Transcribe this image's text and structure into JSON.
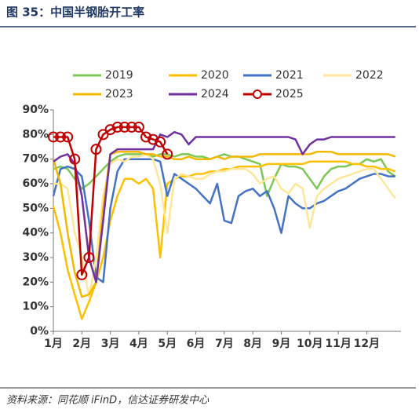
{
  "chart_data": {
    "type": "line",
    "title": "图 35：中国半钢胎开工率",
    "source": "资料来源：同花顺 iFinD，信达证券研发中心",
    "x": [
      1,
      1.25,
      1.5,
      1.75,
      2,
      2.25,
      2.5,
      2.75,
      3,
      3.25,
      3.5,
      3.75,
      4,
      4.25,
      4.5,
      4.75,
      5,
      5.25,
      5.5,
      5.75,
      6,
      6.25,
      6.5,
      6.75,
      7,
      7.25,
      7.5,
      7.75,
      8,
      8.25,
      8.5,
      8.75,
      9,
      9.25,
      9.5,
      9.75,
      10,
      10.25,
      10.5,
      10.75,
      11,
      11.25,
      11.5,
      11.75,
      12,
      12.25,
      12.5,
      12.75,
      13
    ],
    "xlim": [
      1,
      13.2
    ],
    "xticks": [
      {
        "value": 1,
        "label": "1月"
      },
      {
        "value": 2,
        "label": "2月"
      },
      {
        "value": 3,
        "label": "3月"
      },
      {
        "value": 4,
        "label": "4月"
      },
      {
        "value": 5,
        "label": "5月"
      },
      {
        "value": 6,
        "label": "6月"
      },
      {
        "value": 7,
        "label": "7月"
      },
      {
        "value": 8,
        "label": "8月"
      },
      {
        "value": 9,
        "label": "9月"
      },
      {
        "value": 10,
        "label": "10月"
      },
      {
        "value": 11,
        "label": "11月"
      },
      {
        "value": 12,
        "label": "12月"
      }
    ],
    "ylim": [
      0,
      90
    ],
    "yticks": [
      {
        "value": 0,
        "label": "0%"
      },
      {
        "value": 10,
        "label": "10%"
      },
      {
        "value": 20,
        "label": "20%"
      },
      {
        "value": 30,
        "label": "30%"
      },
      {
        "value": 40,
        "label": "40%"
      },
      {
        "value": 50,
        "label": "50%"
      },
      {
        "value": 60,
        "label": "60%"
      },
      {
        "value": 70,
        "label": "70%"
      },
      {
        "value": 80,
        "label": "80%"
      },
      {
        "value": 90,
        "label": "90%"
      }
    ],
    "series": [
      {
        "name": "2019",
        "color": "#7dc855",
        "values": [
          66,
          67,
          66,
          62,
          58,
          60,
          63,
          66,
          69,
          71,
          72,
          72,
          72,
          72,
          71,
          72,
          72,
          71,
          72,
          72,
          71,
          71,
          70,
          71,
          72,
          71,
          71,
          70,
          69,
          68,
          55,
          62,
          68,
          67,
          67,
          66,
          62,
          58,
          63,
          66,
          67,
          67,
          68,
          68,
          70,
          69,
          70,
          65,
          63
        ]
      },
      {
        "name": "2020",
        "color": "#ffc000",
        "values": [
          51,
          40,
          25,
          15,
          5,
          12,
          20,
          30,
          45,
          55,
          62,
          62,
          60,
          62,
          58,
          30,
          60,
          62,
          63,
          63,
          64,
          64,
          65,
          65,
          66,
          66,
          67,
          67,
          67,
          67,
          68,
          68,
          68,
          68,
          68,
          68,
          69,
          69,
          69,
          69,
          69,
          69,
          68,
          68,
          67,
          67,
          66,
          66,
          65
        ]
      },
      {
        "name": "2021",
        "color": "#4472c4",
        "values": [
          55,
          66,
          67,
          66,
          63,
          45,
          22,
          20,
          50,
          65,
          70,
          70,
          70,
          70,
          70,
          69,
          55,
          64,
          62,
          60,
          58,
          55,
          52,
          60,
          45,
          44,
          55,
          57,
          58,
          55,
          57,
          50,
          40,
          55,
          52,
          50,
          50,
          52,
          53,
          55,
          57,
          58,
          60,
          62,
          63,
          64,
          64,
          63,
          63
        ]
      },
      {
        "name": "2022",
        "color": "#ffe699",
        "values": [
          60,
          60,
          58,
          40,
          30,
          14,
          30,
          55,
          68,
          70,
          69,
          71,
          71,
          72,
          70,
          60,
          40,
          62,
          64,
          63,
          62,
          62,
          64,
          65,
          65,
          66,
          66,
          66,
          64,
          60,
          62,
          63,
          58,
          56,
          60,
          58,
          42,
          55,
          58,
          60,
          62,
          63,
          64,
          65,
          66,
          66,
          62,
          58,
          54
        ]
      },
      {
        "name": "2023",
        "color": "#f5b800",
        "values": [
          70,
          60,
          40,
          24,
          14,
          15,
          20,
          50,
          72,
          73,
          73,
          73,
          73,
          72,
          72,
          71,
          71,
          70,
          70,
          71,
          70,
          70,
          70,
          71,
          70,
          71,
          71,
          71,
          71,
          72,
          72,
          72,
          72,
          72,
          72,
          72,
          72,
          73,
          73,
          73,
          72,
          72,
          72,
          72,
          72,
          72,
          72,
          72,
          71
        ]
      },
      {
        "name": "2024",
        "color": "#7030a0",
        "values": [
          69,
          71,
          72,
          68,
          55,
          30,
          20,
          45,
          72,
          74,
          74,
          74,
          74,
          74,
          74,
          80,
          79,
          81,
          80,
          76,
          79,
          79,
          79,
          79,
          79,
          79,
          79,
          79,
          79,
          79,
          79,
          79,
          79,
          79,
          78,
          72,
          76,
          78,
          78,
          79,
          79,
          79,
          79,
          79,
          79,
          79,
          79,
          79,
          79
        ]
      },
      {
        "name": "2025",
        "color": "#c00000",
        "values": [
          79,
          79,
          79,
          70,
          23,
          30,
          74,
          80,
          82,
          83,
          83,
          83,
          83,
          79,
          78,
          77,
          72,
          null,
          null,
          null,
          null,
          null,
          null,
          null,
          null,
          null,
          null,
          null,
          null,
          null,
          null,
          null,
          null,
          null,
          null,
          null,
          null,
          null,
          null,
          null,
          null,
          null,
          null,
          null,
          null,
          null,
          null,
          null,
          null
        ]
      }
    ]
  }
}
